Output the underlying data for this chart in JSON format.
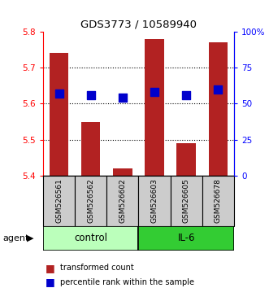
{
  "title": "GDS3773 / 10589940",
  "samples": [
    "GSM526561",
    "GSM526562",
    "GSM526602",
    "GSM526603",
    "GSM526605",
    "GSM526678"
  ],
  "bar_values": [
    5.74,
    5.55,
    5.42,
    5.78,
    5.49,
    5.77
  ],
  "bar_base": 5.4,
  "percentile_values": [
    0.57,
    0.56,
    0.54,
    0.58,
    0.56,
    0.6
  ],
  "ylim_left": [
    5.4,
    5.8
  ],
  "ylim_right": [
    0.0,
    1.0
  ],
  "yticks_left": [
    5.4,
    5.5,
    5.6,
    5.7,
    5.8
  ],
  "yticks_right": [
    0.0,
    0.25,
    0.5,
    0.75,
    1.0
  ],
  "ytick_labels_right": [
    "0",
    "25",
    "50",
    "75",
    "100%"
  ],
  "ytick_labels_left": [
    "5.4",
    "5.5",
    "5.6",
    "5.7",
    "5.8"
  ],
  "bar_color": "#b22222",
  "dot_color": "#0000cc",
  "control_color": "#bbffbb",
  "il6_color": "#33cc33",
  "sample_bg_color": "#cccccc",
  "bar_width": 0.6,
  "dot_size": 55,
  "legend_entries": [
    "transformed count",
    "percentile rank within the sample"
  ],
  "agent_label": "agent",
  "group_label_control": "control",
  "group_label_il6": "IL-6",
  "grid_yticks": [
    5.5,
    5.6,
    5.7
  ]
}
